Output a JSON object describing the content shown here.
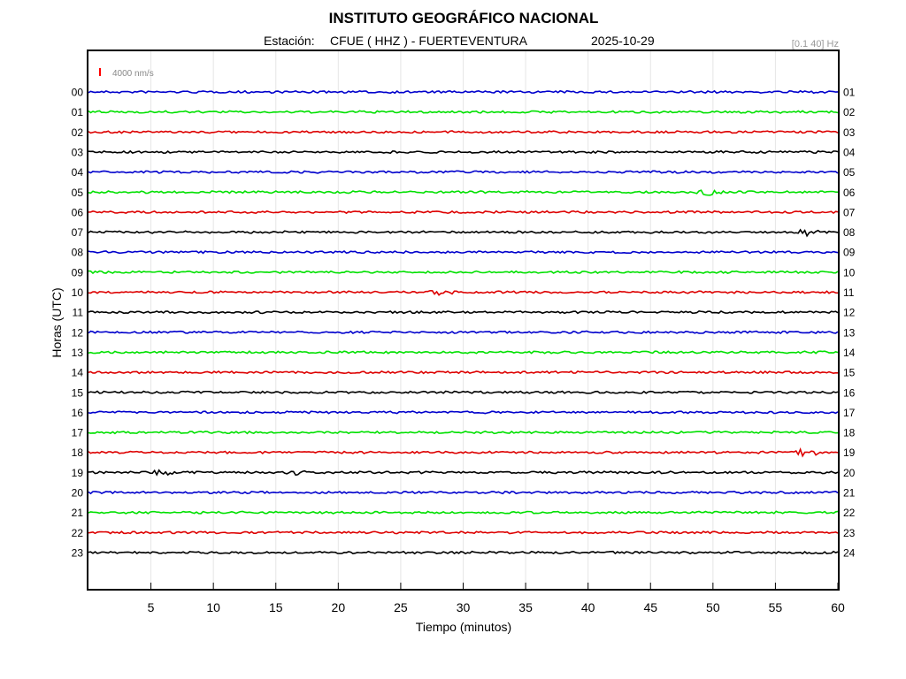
{
  "chart_data": {
    "type": "line",
    "title": "INSTITUTO GEOGRÁFICO NACIONAL",
    "station_label": "Estación:",
    "station": "CFUE ( HHZ ) - FUERTEVENTURA",
    "date": "2025-10-29",
    "filter": "[0.1 40] Hz",
    "scale_label": "4000 nm/s",
    "scale_color": "#ff0000",
    "xlabel": "Tiempo (minutos)",
    "ylabel": "Horas (UTC)",
    "xlim": [
      0,
      60
    ],
    "x_ticks": [
      "5",
      "10",
      "15",
      "20",
      "25",
      "30",
      "35",
      "40",
      "45",
      "50",
      "55",
      "60"
    ],
    "x_tick_values": [
      5,
      10,
      15,
      20,
      25,
      30,
      35,
      40,
      45,
      50,
      55,
      60
    ],
    "left_ticks": [
      "00",
      "01",
      "02",
      "03",
      "04",
      "05",
      "06",
      "07",
      "08",
      "09",
      "10",
      "11",
      "12",
      "13",
      "14",
      "15",
      "16",
      "17",
      "18",
      "19",
      "20",
      "21",
      "22",
      "23"
    ],
    "right_ticks": [
      "01",
      "02",
      "03",
      "04",
      "05",
      "06",
      "07",
      "08",
      "09",
      "10",
      "11",
      "12",
      "13",
      "14",
      "15",
      "16",
      "17",
      "18",
      "19",
      "20",
      "21",
      "22",
      "23",
      "24"
    ],
    "grid": "vertical",
    "trace_colors": [
      "#0000cc",
      "#00e000",
      "#dd0000",
      "#000000"
    ],
    "events": [
      {
        "hour": 5,
        "minute": 49.8,
        "amp": 0.35
      },
      {
        "hour": 7,
        "minute": 57.6,
        "amp": 0.4
      },
      {
        "hour": 10,
        "minute": 28.2,
        "amp": 0.3
      },
      {
        "hour": 18,
        "minute": 57.5,
        "amp": 0.45
      },
      {
        "hour": 19,
        "minute": 6.0,
        "amp": 0.3
      },
      {
        "hour": 19,
        "minute": 16.8,
        "amp": 0.25
      }
    ]
  }
}
